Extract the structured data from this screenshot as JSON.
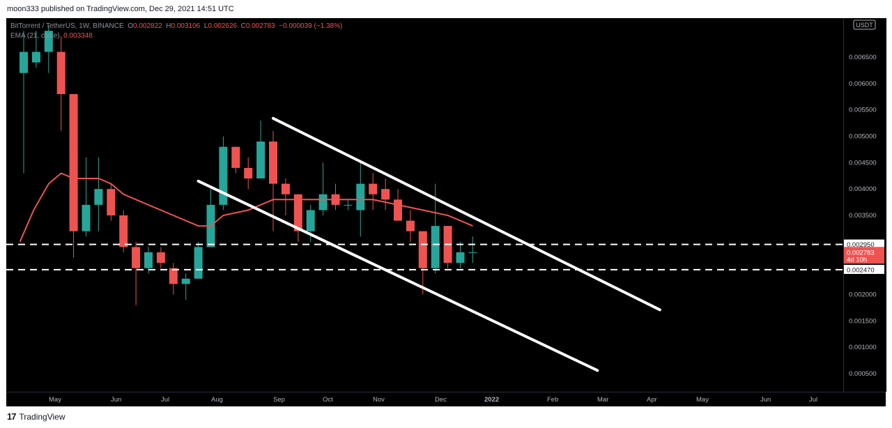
{
  "header": {
    "text": "moon333 published on TradingView.com, Dec 29, 2021 14:51 UTC"
  },
  "footer": {
    "logo": "17",
    "brand": "TradingView"
  },
  "legend": {
    "symbol": "BitTorrent / TetherUS, 1W, BINANCE",
    "o_label": "O",
    "o_value": "0.002822",
    "h_label": "H",
    "h_value": "0.003106",
    "l_label": "L",
    "l_value": "0.002626",
    "c_label": "C",
    "c_value": "0.002783",
    "change": "−0.000039 (−1.38%)",
    "ema_label": "EMA (21, close)",
    "ema_value": "0.003348"
  },
  "colors": {
    "up": "#26a69a",
    "down": "#ef5350",
    "ema": "#ef5350",
    "background": "#000000",
    "axis_text": "#b2b5be",
    "drawings": "#ffffff"
  },
  "price_axis": {
    "currency_badge": "USDT",
    "ticks": [
      "0.006500",
      "0.006000",
      "0.005500",
      "0.005000",
      "0.004500",
      "0.004000",
      "0.003500",
      "0.003000",
      "0.002500",
      "0.002000",
      "0.001500",
      "0.001000",
      "0.000500"
    ],
    "current_price": "0.002783",
    "countdown": "4d 10h",
    "level_high": "0.002950",
    "level_low": "0.002470"
  },
  "chart_data": {
    "type": "candlestick",
    "x_axis_ticks": [
      "May",
      "Jun",
      "Jul",
      "Aug",
      "Sep",
      "Oct",
      "Nov",
      "Dec",
      "2022",
      "Feb",
      "Mar",
      "Apr",
      "May",
      "Jun",
      "Jul"
    ],
    "ylim": [
      0.0002,
      0.0068
    ],
    "candles": [
      {
        "o": 0.0062,
        "h": 0.007,
        "l": 0.0043,
        "c": 0.0066
      },
      {
        "o": 0.0064,
        "h": 0.007,
        "l": 0.0063,
        "c": 0.0066
      },
      {
        "o": 0.0066,
        "h": 0.0071,
        "l": 0.0062,
        "c": 0.007
      },
      {
        "o": 0.0066,
        "h": 0.0069,
        "l": 0.0051,
        "c": 0.0058
      },
      {
        "o": 0.0058,
        "h": 0.0058,
        "l": 0.0027,
        "c": 0.0032
      },
      {
        "o": 0.0032,
        "h": 0.0046,
        "l": 0.0031,
        "c": 0.0037
      },
      {
        "o": 0.0037,
        "h": 0.0046,
        "l": 0.0032,
        "c": 0.004
      },
      {
        "o": 0.004,
        "h": 0.0041,
        "l": 0.0034,
        "c": 0.0035
      },
      {
        "o": 0.0035,
        "h": 0.0036,
        "l": 0.0028,
        "c": 0.0029
      },
      {
        "o": 0.0029,
        "h": 0.003,
        "l": 0.0018,
        "c": 0.0025
      },
      {
        "o": 0.0025,
        "h": 0.0029,
        "l": 0.0024,
        "c": 0.0028
      },
      {
        "o": 0.0028,
        "h": 0.0029,
        "l": 0.0025,
        "c": 0.0026
      },
      {
        "o": 0.0025,
        "h": 0.0026,
        "l": 0.002,
        "c": 0.0022
      },
      {
        "o": 0.0022,
        "h": 0.0024,
        "l": 0.0019,
        "c": 0.0023
      },
      {
        "o": 0.0023,
        "h": 0.003,
        "l": 0.0023,
        "c": 0.0029
      },
      {
        "o": 0.0029,
        "h": 0.004,
        "l": 0.0029,
        "c": 0.0037
      },
      {
        "o": 0.0037,
        "h": 0.005,
        "l": 0.0036,
        "c": 0.0048
      },
      {
        "o": 0.0048,
        "h": 0.0048,
        "l": 0.0043,
        "c": 0.0044
      },
      {
        "o": 0.0044,
        "h": 0.0046,
        "l": 0.004,
        "c": 0.0042
      },
      {
        "o": 0.0042,
        "h": 0.0053,
        "l": 0.0042,
        "c": 0.0049
      },
      {
        "o": 0.0049,
        "h": 0.0051,
        "l": 0.0032,
        "c": 0.0041
      },
      {
        "o": 0.0041,
        "h": 0.0042,
        "l": 0.0035,
        "c": 0.0039
      },
      {
        "o": 0.0039,
        "h": 0.0039,
        "l": 0.003,
        "c": 0.0032
      },
      {
        "o": 0.0032,
        "h": 0.0037,
        "l": 0.003,
        "c": 0.0036
      },
      {
        "o": 0.0036,
        "h": 0.0045,
        "l": 0.0035,
        "c": 0.0039
      },
      {
        "o": 0.0039,
        "h": 0.0041,
        "l": 0.0036,
        "c": 0.0037
      },
      {
        "o": 0.0037,
        "h": 0.0038,
        "l": 0.0036,
        "c": 0.0037
      },
      {
        "o": 0.0036,
        "h": 0.0045,
        "l": 0.0031,
        "c": 0.0041
      },
      {
        "o": 0.0041,
        "h": 0.0043,
        "l": 0.0036,
        "c": 0.0039
      },
      {
        "o": 0.004,
        "h": 0.0042,
        "l": 0.0036,
        "c": 0.0038
      },
      {
        "o": 0.0038,
        "h": 0.004,
        "l": 0.0034,
        "c": 0.0034
      },
      {
        "o": 0.0034,
        "h": 0.0036,
        "l": 0.003,
        "c": 0.0032
      },
      {
        "o": 0.0032,
        "h": 0.0032,
        "l": 0.002,
        "c": 0.0025
      },
      {
        "o": 0.0025,
        "h": 0.0041,
        "l": 0.0024,
        "c": 0.0033
      },
      {
        "o": 0.0033,
        "h": 0.0033,
        "l": 0.0025,
        "c": 0.0026
      },
      {
        "o": 0.0026,
        "h": 0.003,
        "l": 0.0025,
        "c": 0.0028
      },
      {
        "o": 0.0028,
        "h": 0.0031,
        "l": 0.0026,
        "c": 0.0028
      }
    ],
    "ema": [
      {
        "i": -0.3,
        "v": 0.003
      },
      {
        "i": 0.8,
        "v": 0.0036
      },
      {
        "i": 2,
        "v": 0.0041
      },
      {
        "i": 3,
        "v": 0.0043
      },
      {
        "i": 4,
        "v": 0.0042
      },
      {
        "i": 6,
        "v": 0.0042
      },
      {
        "i": 7,
        "v": 0.0041
      },
      {
        "i": 8,
        "v": 0.0039
      },
      {
        "i": 10,
        "v": 0.0037
      },
      {
        "i": 12,
        "v": 0.0035
      },
      {
        "i": 14,
        "v": 0.0033
      },
      {
        "i": 15,
        "v": 0.0033
      },
      {
        "i": 16,
        "v": 0.0035
      },
      {
        "i": 18,
        "v": 0.0036
      },
      {
        "i": 20,
        "v": 0.0038
      },
      {
        "i": 22,
        "v": 0.0038
      },
      {
        "i": 24,
        "v": 0.0038
      },
      {
        "i": 26,
        "v": 0.0038
      },
      {
        "i": 28,
        "v": 0.0038
      },
      {
        "i": 30,
        "v": 0.0037
      },
      {
        "i": 32,
        "v": 0.0036
      },
      {
        "i": 34,
        "v": 0.0035
      },
      {
        "i": 36,
        "v": 0.0033
      }
    ],
    "levels": [
      0.00295,
      0.00247
    ],
    "channel_upper": {
      "i1": 20,
      "v1": 0.00534,
      "i2": 51,
      "v2": 0.00171
    },
    "channel_lower": {
      "i1": 14,
      "v1": 0.00415,
      "i2": 46,
      "v2": 0.00056
    }
  }
}
